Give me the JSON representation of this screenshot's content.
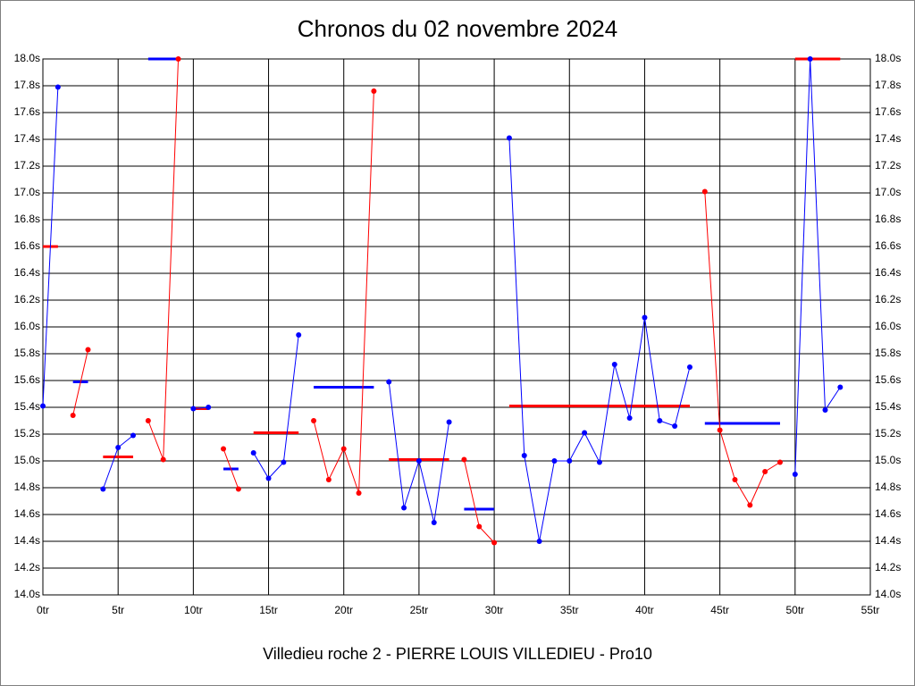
{
  "chart_data": {
    "type": "line",
    "title": "Chronos du 02 novembre 2024",
    "xlabel": "Villedieu roche 2 - PIERRE LOUIS VILLEDIEU - Pro10",
    "xlim": [
      0,
      55
    ],
    "ylim": [
      14.0,
      18.0
    ],
    "xticks": [
      {
        "value": 0,
        "label": "0tr"
      },
      {
        "value": 5,
        "label": "5tr"
      },
      {
        "value": 10,
        "label": "10tr"
      },
      {
        "value": 15,
        "label": "15tr"
      },
      {
        "value": 20,
        "label": "20tr"
      },
      {
        "value": 25,
        "label": "25tr"
      },
      {
        "value": 30,
        "label": "30tr"
      },
      {
        "value": 35,
        "label": "35tr"
      },
      {
        "value": 40,
        "label": "40tr"
      },
      {
        "value": 45,
        "label": "45tr"
      },
      {
        "value": 50,
        "label": "50tr"
      },
      {
        "value": 55,
        "label": "55tr"
      }
    ],
    "yticks": [
      {
        "value": 14.0,
        "label": "14.0s"
      },
      {
        "value": 14.2,
        "label": "14.2s"
      },
      {
        "value": 14.4,
        "label": "14.4s"
      },
      {
        "value": 14.6,
        "label": "14.6s"
      },
      {
        "value": 14.8,
        "label": "14.8s"
      },
      {
        "value": 15.0,
        "label": "15.0s"
      },
      {
        "value": 15.2,
        "label": "15.2s"
      },
      {
        "value": 15.4,
        "label": "15.4s"
      },
      {
        "value": 15.6,
        "label": "15.6s"
      },
      {
        "value": 15.8,
        "label": "15.8s"
      },
      {
        "value": 16.0,
        "label": "16.0s"
      },
      {
        "value": 16.2,
        "label": "16.2s"
      },
      {
        "value": 16.4,
        "label": "16.4s"
      },
      {
        "value": 16.6,
        "label": "16.6s"
      },
      {
        "value": 16.8,
        "label": "16.8s"
      },
      {
        "value": 17.0,
        "label": "17.0s"
      },
      {
        "value": 17.2,
        "label": "17.2s"
      },
      {
        "value": 17.4,
        "label": "17.4s"
      },
      {
        "value": 17.6,
        "label": "17.6s"
      },
      {
        "value": 17.8,
        "label": "17.8s"
      },
      {
        "value": 18.0,
        "label": "18.0s"
      }
    ],
    "grid": true,
    "series": [
      {
        "color": "#0000ff",
        "average_color": "#ff0000",
        "x": [
          0,
          1
        ],
        "values": [
          15.41,
          17.79
        ],
        "average": 16.6
      },
      {
        "color": "#ff0000",
        "average_color": "#0000ff",
        "x": [
          2,
          3
        ],
        "values": [
          15.34,
          15.83
        ],
        "average": 15.59
      },
      {
        "color": "#0000ff",
        "average_color": "#ff0000",
        "x": [
          4,
          5,
          6
        ],
        "values": [
          14.79,
          15.1,
          15.19
        ],
        "average": 15.03
      },
      {
        "color": "#ff0000",
        "average_color": "#0000ff",
        "x": [
          7,
          8,
          9
        ],
        "values": [
          15.3,
          15.01,
          18.0
        ],
        "average": 18.0
      },
      {
        "color": "#0000ff",
        "average_color": "#ff0000",
        "x": [
          10,
          11
        ],
        "values": [
          15.39,
          15.4
        ],
        "average": 15.39
      },
      {
        "color": "#ff0000",
        "average_color": "#0000ff",
        "x": [
          12,
          13
        ],
        "values": [
          15.09,
          14.79
        ],
        "average": 14.94
      },
      {
        "color": "#0000ff",
        "average_color": "#ff0000",
        "x": [
          14,
          15,
          16,
          17
        ],
        "values": [
          15.06,
          14.87,
          14.99,
          15.94
        ],
        "average": 15.21
      },
      {
        "color": "#ff0000",
        "average_color": "#0000ff",
        "x": [
          18,
          19,
          20,
          21,
          22
        ],
        "values": [
          15.3,
          14.86,
          15.09,
          14.76,
          17.76
        ],
        "average": 15.55
      },
      {
        "color": "#0000ff",
        "average_color": "#ff0000",
        "x": [
          23,
          24,
          25,
          26,
          27
        ],
        "values": [
          15.59,
          14.65,
          15.0,
          14.54,
          15.29
        ],
        "average": 15.01
      },
      {
        "color": "#ff0000",
        "average_color": "#0000ff",
        "x": [
          28,
          29,
          30
        ],
        "values": [
          15.01,
          14.51,
          14.39
        ],
        "average": 14.64
      },
      {
        "color": "#0000ff",
        "average_color": "#ff0000",
        "x": [
          31,
          32,
          33,
          34,
          35,
          36,
          37,
          38,
          39,
          40,
          41,
          42,
          43
        ],
        "values": [
          17.41,
          15.04,
          14.4,
          15.0,
          15.0,
          15.21,
          14.99,
          15.72,
          15.32,
          16.07,
          15.3,
          15.26,
          15.7
        ],
        "average": 15.41
      },
      {
        "color": "#ff0000",
        "average_color": "#0000ff",
        "x": [
          44,
          45,
          46,
          47,
          48,
          49
        ],
        "values": [
          17.01,
          15.23,
          14.86,
          14.67,
          14.92,
          14.99
        ],
        "average": 15.28
      },
      {
        "color": "#0000ff",
        "average_color": "#ff0000",
        "x": [
          50,
          51,
          52,
          53
        ],
        "values": [
          14.9,
          18.0,
          15.38,
          15.55
        ],
        "average": 18.0
      }
    ]
  }
}
